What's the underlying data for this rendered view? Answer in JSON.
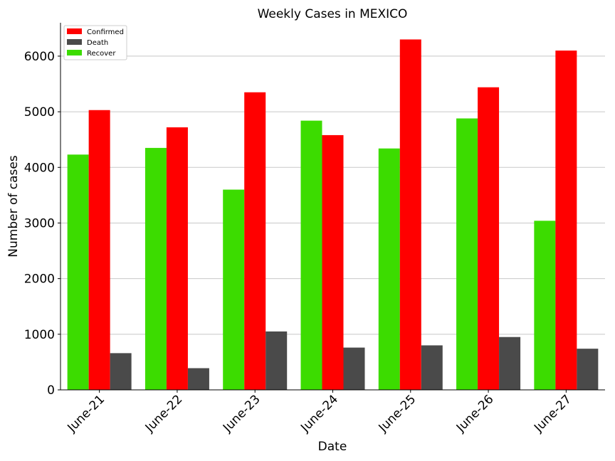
{
  "chart_data": {
    "type": "bar",
    "title": "Weekly Cases in MEXICO",
    "xlabel": "Date",
    "ylabel": "Number of cases",
    "categories": [
      "June-21",
      "June-22",
      "June-23",
      "June-24",
      "June-25",
      "June-26",
      "June-27"
    ],
    "series": [
      {
        "name": "Recover",
        "color": "#3cdc00",
        "values": [
          4230,
          4350,
          3600,
          4840,
          4340,
          4880,
          3040
        ]
      },
      {
        "name": "Confirmed",
        "color": "#ff0000",
        "values": [
          5030,
          4720,
          5350,
          4580,
          6300,
          5440,
          6100
        ]
      },
      {
        "name": "Death",
        "color": "#4a4a4a",
        "values": [
          660,
          390,
          1050,
          760,
          800,
          950,
          740
        ]
      }
    ],
    "legend_order": [
      "Confirmed",
      "Death",
      "Recover"
    ],
    "ylim": [
      0,
      6600
    ],
    "yticks": [
      0,
      1000,
      2000,
      3000,
      4000,
      5000,
      6000
    ],
    "grid": "horizontal",
    "legend_position": "top-left",
    "xtick_rotation": 45
  }
}
